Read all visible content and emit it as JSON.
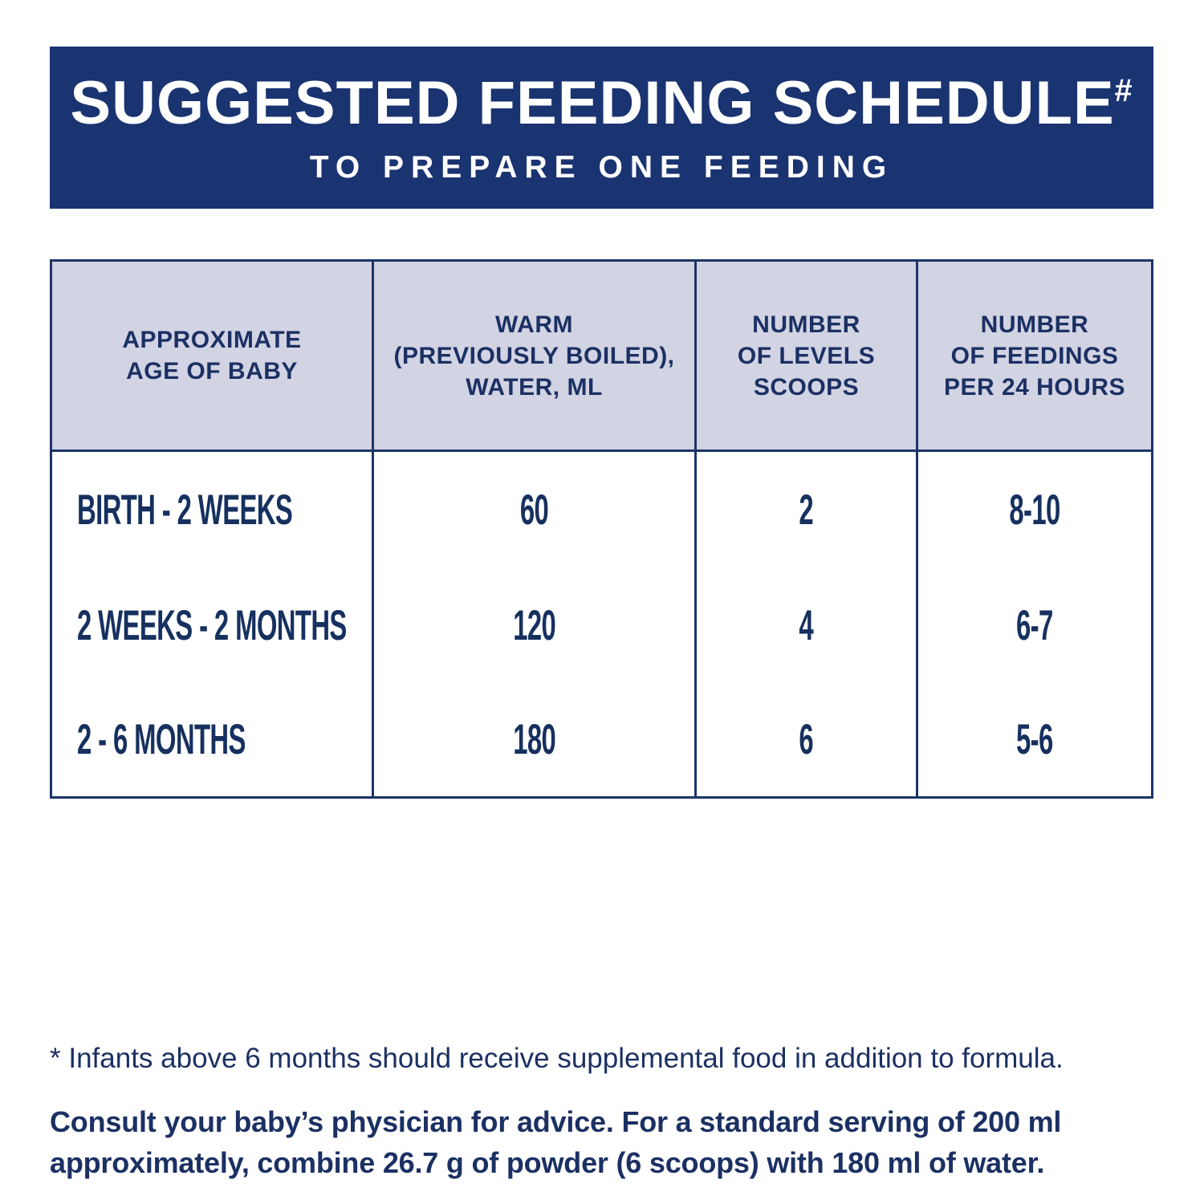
{
  "banner": {
    "title": "SUGGESTED FEEDING SCHEDULE",
    "title_superscript": "#",
    "subtitle": "TO PREPARE ONE FEEDING"
  },
  "table": {
    "columns": [
      {
        "label": "APPROXIMATE\nAGE OF BABY"
      },
      {
        "label": "WARM\n(PREVIOUSLY BOILED),\nWATER, ML"
      },
      {
        "label": "NUMBER\nOF LEVELS\nSCOOPS"
      },
      {
        "label": "NUMBER\nOF FEEDINGS\nPER 24 HOURS"
      }
    ],
    "rows": [
      {
        "age": "BIRTH - 2 WEEKS",
        "water_ml": "60",
        "scoops": "2",
        "feedings_per_24h": "8-10"
      },
      {
        "age": "2 WEEKS - 2 MONTHS",
        "water_ml": "120",
        "scoops": "4",
        "feedings_per_24h": "6-7"
      },
      {
        "age": "2 - 6 MONTHS",
        "water_ml": "180",
        "scoops": "6",
        "feedings_per_24h": "5-6"
      }
    ]
  },
  "footnotes": {
    "asterisk_note": "* Infants above 6 months should receive supplemental food in addition to formula.",
    "consult_note": "Consult your baby’s physician for advice. For a standard serving of 200 ml approximately, combine 26.7 g of powder (6 scoops) with 180 ml of water."
  },
  "colors": {
    "banner_background": "#1a3371",
    "banner_text": "#ffffff",
    "table_border": "#1c3566",
    "header_cell_background": "#d2d3e3",
    "table_text": "#16305f",
    "footnote_text": "#1b3063"
  }
}
